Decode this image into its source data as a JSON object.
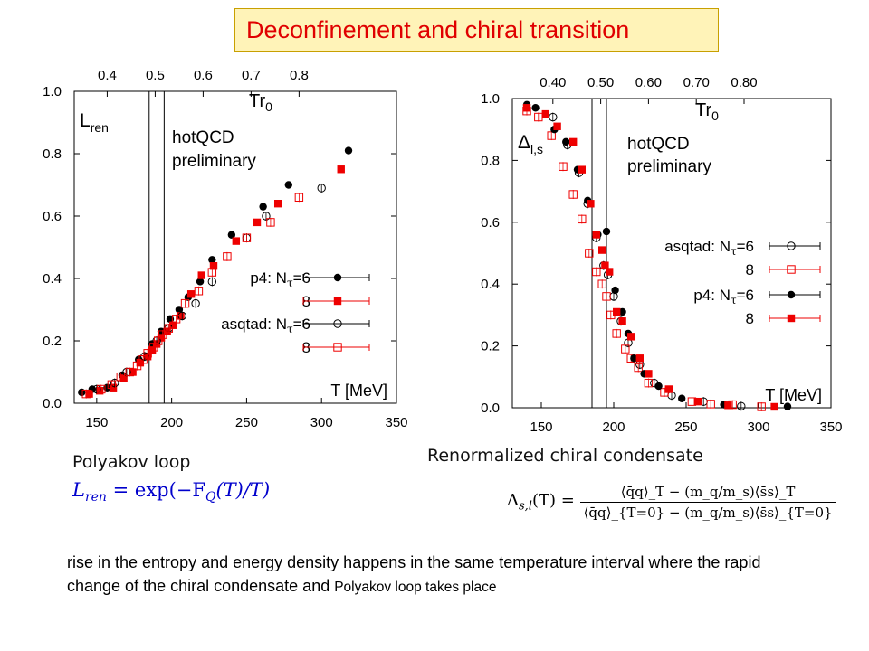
{
  "title": "Deconfinement and chiral transition",
  "colors": {
    "title_text": "#e00000",
    "title_bg": "#fff3b8",
    "title_border": "#c8a000",
    "black_series": "#000000",
    "red_series": "#ee0000",
    "formula_blue": "#0000cc"
  },
  "chart_data": [
    {
      "type": "scatter",
      "title": "",
      "xlabel": "T [MeV]",
      "xlim": [
        135,
        350
      ],
      "ylim": [
        0.0,
        1.0
      ],
      "x_ticks": [
        "150",
        "200",
        "250",
        "300",
        "350"
      ],
      "y_ticks": [
        "0.0",
        "0.2",
        "0.4",
        "0.6",
        "0.8",
        "1.0"
      ],
      "top_axis_label": "Tr0",
      "top_ticks": [
        "0.4",
        "0.5",
        "0.6",
        "0.7",
        "0.8"
      ],
      "top_tick_T": [
        157,
        189,
        221,
        253,
        285
      ],
      "vlines_T": [
        185,
        195
      ],
      "annotation_label": "L_ren",
      "annotation_main": "L",
      "annotation_sub": "ren",
      "watermark": [
        "hotQCD",
        "preliminary"
      ],
      "legend_position": "right-middle",
      "series": [
        {
          "name": "p4: Nτ=6",
          "legend_prefix": "p4: N",
          "legend_suffix": "=6",
          "marker": "filled-circle",
          "color": "#000000",
          "x": [
            140,
            147,
            157,
            167,
            178,
            187,
            193,
            199,
            205,
            211,
            219,
            227,
            240,
            261,
            278,
            318
          ],
          "y": [
            0.035,
            0.045,
            0.05,
            0.09,
            0.14,
            0.19,
            0.23,
            0.27,
            0.3,
            0.34,
            0.39,
            0.46,
            0.54,
            0.63,
            0.7,
            0.81
          ]
        },
        {
          "name": "8",
          "legend_prefix": "8",
          "legend_suffix": "",
          "marker": "filled-square",
          "color": "#ee0000",
          "x": [
            145,
            152,
            161,
            168,
            174,
            179,
            184,
            187,
            190,
            193,
            197,
            201,
            206,
            213,
            220,
            228,
            243,
            257,
            271,
            313
          ],
          "y": [
            0.03,
            0.04,
            0.05,
            0.08,
            0.1,
            0.13,
            0.15,
            0.17,
            0.19,
            0.21,
            0.23,
            0.25,
            0.28,
            0.35,
            0.41,
            0.44,
            0.52,
            0.58,
            0.64,
            0.75
          ]
        },
        {
          "name": "asqtad: Nτ=6",
          "legend_prefix": "asqtad: N",
          "legend_suffix": "=6",
          "marker": "open-circle",
          "color": "#000000",
          "x": [
            150,
            162,
            170,
            182,
            190,
            198,
            207,
            216,
            227,
            250,
            263,
            300
          ],
          "y": [
            0.045,
            0.065,
            0.1,
            0.15,
            0.2,
            0.24,
            0.28,
            0.32,
            0.39,
            0.53,
            0.6,
            0.69
          ]
        },
        {
          "name": "8",
          "legend_prefix": "8",
          "legend_suffix": "",
          "marker": "open-square",
          "color": "#ee0000",
          "x": [
            143,
            153,
            160,
            166,
            172,
            177,
            181,
            184,
            188,
            191,
            194,
            198,
            203,
            209,
            218,
            227,
            237,
            250,
            266,
            285
          ],
          "y": [
            0.03,
            0.045,
            0.06,
            0.085,
            0.1,
            0.12,
            0.14,
            0.16,
            0.18,
            0.2,
            0.22,
            0.24,
            0.27,
            0.32,
            0.36,
            0.42,
            0.47,
            0.53,
            0.58,
            0.66
          ]
        }
      ]
    },
    {
      "type": "scatter",
      "title": "",
      "xlabel": "T [MeV]",
      "xlim": [
        130,
        350
      ],
      "ylim": [
        0.0,
        1.0
      ],
      "x_ticks": [
        "150",
        "200",
        "250",
        "300",
        "350"
      ],
      "y_ticks": [
        "0.0",
        "0.2",
        "0.4",
        "0.6",
        "0.8",
        "1.0"
      ],
      "top_axis_label": "Tr0",
      "top_ticks": [
        "0.40",
        "0.50",
        "0.60",
        "0.70",
        "0.80"
      ],
      "top_tick_T": [
        158,
        191,
        224,
        257,
        290
      ],
      "vlines_T": [
        185,
        195
      ],
      "annotation_label": "Δ_l,s",
      "annotation_main": "Δ",
      "annotation_sub": "l,s",
      "watermark": [
        "hotQCD",
        "preliminary"
      ],
      "legend_position": "right-middle",
      "series": [
        {
          "name": "asqtad: Nτ=6",
          "legend_prefix": "asqtad: N",
          "legend_suffix": "=6",
          "marker": "open-circle",
          "color": "#000000",
          "x": [
            158,
            168,
            176,
            182,
            188,
            193,
            196,
            200,
            205,
            210,
            218,
            228,
            240,
            262,
            288
          ],
          "y": [
            0.94,
            0.85,
            0.76,
            0.66,
            0.55,
            0.46,
            0.43,
            0.36,
            0.28,
            0.21,
            0.14,
            0.08,
            0.04,
            0.02,
            0.005
          ]
        },
        {
          "name": "8",
          "legend_prefix": "8",
          "legend_suffix": "",
          "marker": "open-square",
          "color": "#ee0000",
          "x": [
            140,
            148,
            157,
            165,
            172,
            178,
            183,
            188,
            192,
            195,
            198,
            202,
            208,
            212,
            217,
            224,
            235,
            254,
            267,
            282,
            302
          ],
          "y": [
            0.96,
            0.94,
            0.88,
            0.78,
            0.69,
            0.61,
            0.5,
            0.44,
            0.4,
            0.36,
            0.3,
            0.24,
            0.19,
            0.16,
            0.13,
            0.08,
            0.05,
            0.02,
            0.012,
            0.01,
            0.003
          ]
        },
        {
          "name": "p4: Nτ=6",
          "legend_prefix": "p4: N",
          "legend_suffix": "=6",
          "marker": "filled-circle",
          "color": "#000000",
          "x": [
            140,
            146,
            159,
            167,
            175,
            182,
            189,
            195,
            201,
            206,
            210,
            214,
            221,
            231,
            247,
            276,
            320
          ],
          "y": [
            0.98,
            0.97,
            0.9,
            0.86,
            0.77,
            0.67,
            0.56,
            0.57,
            0.38,
            0.31,
            0.24,
            0.16,
            0.11,
            0.07,
            0.03,
            0.01,
            0.004
          ]
        },
        {
          "name": "8",
          "legend_prefix": "8",
          "legend_suffix": "",
          "marker": "filled-square",
          "color": "#ee0000",
          "x": [
            140,
            153,
            161,
            172,
            178,
            184,
            188,
            192,
            194,
            197,
            202,
            206,
            212,
            218,
            224,
            238,
            258,
            279,
            311
          ],
          "y": [
            0.97,
            0.95,
            0.91,
            0.86,
            0.77,
            0.66,
            0.56,
            0.51,
            0.46,
            0.44,
            0.31,
            0.28,
            0.23,
            0.16,
            0.11,
            0.06,
            0.02,
            0.008,
            0.003
          ]
        }
      ]
    }
  ],
  "captions": {
    "left": "Polyakov loop",
    "right": "Renormalized chiral condensate"
  },
  "formulas": {
    "polyakov": "L_ren = exp(−F_Q(T)/T)",
    "polyakov_lhs": "L",
    "polyakov_lhs_sub": "ren",
    "polyakov_rhs": " = exp(−F",
    "polyakov_rhs_sub": "Q",
    "polyakov_rhs_end": "(T)/T)",
    "chiral_lhs": "Δ",
    "chiral_lhs_sub": "s,l",
    "chiral_lhs_end": "(T) =",
    "chiral_num": "⟨q̄q⟩_T − (m_q/m_s)⟨s̄s⟩_T",
    "chiral_den": "⟨q̄q⟩_{T=0} − (m_q/m_s)⟨s̄s⟩_{T=0}"
  },
  "bottom_text": {
    "main": "rise in the entropy and energy  density  happens in the same temperature interval where the rapid change of the  chiral condensate and ",
    "small": "Polyakov loop takes place"
  }
}
